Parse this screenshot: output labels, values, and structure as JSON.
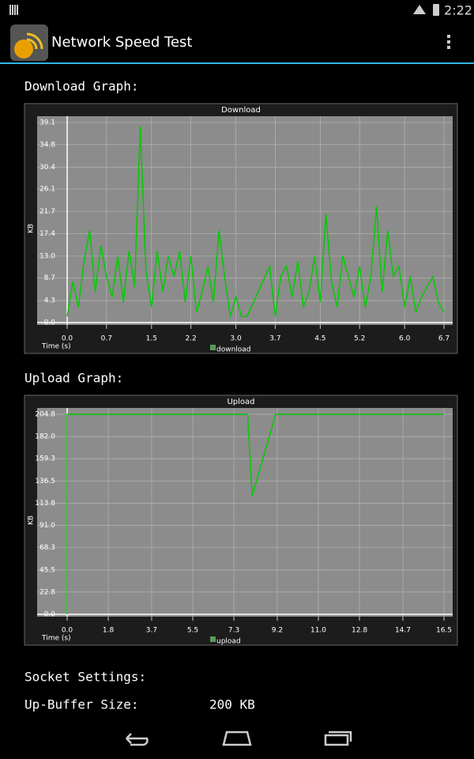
{
  "status_bar": {
    "time": "2:22"
  },
  "app_bar": {
    "title": "Network Speed Test"
  },
  "sections": {
    "download_heading": "Download Graph:",
    "upload_heading": "Upload Graph:",
    "socket_heading": "Socket Settings:"
  },
  "settings": [
    {
      "label": "Up-Buffer Size:",
      "value": "200 KB"
    }
  ],
  "chart_data": [
    {
      "type": "line",
      "title": "Download",
      "x_label": "Time (s)",
      "y_label": "KB",
      "grid": true,
      "x": [
        0,
        0.1,
        0.2,
        0.3,
        0.4,
        0.5,
        0.6,
        0.7,
        0.8,
        0.9,
        1.0,
        1.1,
        1.2,
        1.3,
        1.4,
        1.5,
        1.6,
        1.7,
        1.8,
        1.9,
        2.0,
        2.1,
        2.2,
        2.3,
        2.4,
        2.5,
        2.6,
        2.7,
        2.8,
        2.9,
        3.0,
        3.1,
        3.2,
        3.6,
        3.7,
        3.8,
        3.9,
        4.0,
        4.1,
        4.2,
        4.3,
        4.4,
        4.5,
        4.6,
        4.7,
        4.8,
        4.9,
        5.0,
        5.1,
        5.2,
        5.3,
        5.4,
        5.5,
        5.6,
        5.7,
        5.8,
        5.9,
        6.0,
        6.1,
        6.2,
        6.3,
        6.4,
        6.5,
        6.6,
        6.7
      ],
      "series": [
        {
          "name": "download",
          "color": "#00cc00",
          "values": [
            1.2,
            8,
            3,
            12,
            18,
            6,
            15,
            9,
            5,
            13,
            4,
            14,
            7,
            38.4,
            10,
            3,
            14,
            6,
            13,
            9,
            14,
            4,
            13,
            2,
            6,
            11,
            4,
            18,
            9,
            1.2,
            5,
            1.2,
            1.2,
            11,
            1.2,
            9,
            11,
            5,
            12,
            3,
            6,
            13,
            4,
            21.3,
            8,
            3,
            13,
            9,
            5,
            11,
            3,
            9,
            22.7,
            6,
            18,
            9,
            11,
            3,
            9,
            2,
            5,
            7,
            9,
            4,
            2
          ]
        }
      ],
      "xlim": [
        0,
        6.7
      ],
      "xticks": [
        {
          "value": 0,
          "label": "0.0"
        },
        0.7,
        1.5,
        2.2,
        {
          "value": 3,
          "label": "3.0"
        },
        3.7,
        4.5,
        5.2,
        {
          "value": 6,
          "label": "6.0"
        },
        6.7
      ],
      "ylim": [
        0,
        39.1
      ],
      "yticks": [
        {
          "value": 0,
          "label": "0.0"
        },
        4.3,
        8.7,
        {
          "value": 13,
          "label": "13.0"
        },
        17.4,
        21.7,
        26.1,
        30.4,
        34.8,
        39.1
      ]
    },
    {
      "type": "line",
      "title": "Upload",
      "x_label": "Time (s)",
      "y_label": "KB",
      "grid": true,
      "x": [
        0,
        0,
        7.9,
        8.1,
        9.13,
        16.5
      ],
      "series": [
        {
          "name": "upload",
          "color": "#00cc00",
          "values": [
            0,
            204.8,
            204.8,
            121,
            204.8,
            204.8
          ]
        }
      ],
      "xlim": [
        0,
        16.5
      ],
      "xticks": [
        {
          "value": 0,
          "label": "0.0"
        },
        1.8,
        3.7,
        5.5,
        7.3,
        9.2,
        {
          "value": 11,
          "label": "11.0"
        },
        12.8,
        14.7,
        16.5
      ],
      "ylim": [
        0,
        204.8
      ],
      "yticks": [
        {
          "value": 0,
          "label": "0.0"
        },
        22.8,
        45.5,
        68.3,
        {
          "value": 91,
          "label": "91.0"
        },
        113.8,
        136.5,
        159.3,
        {
          "value": 182,
          "label": "182.0"
        },
        204.8
      ]
    }
  ]
}
